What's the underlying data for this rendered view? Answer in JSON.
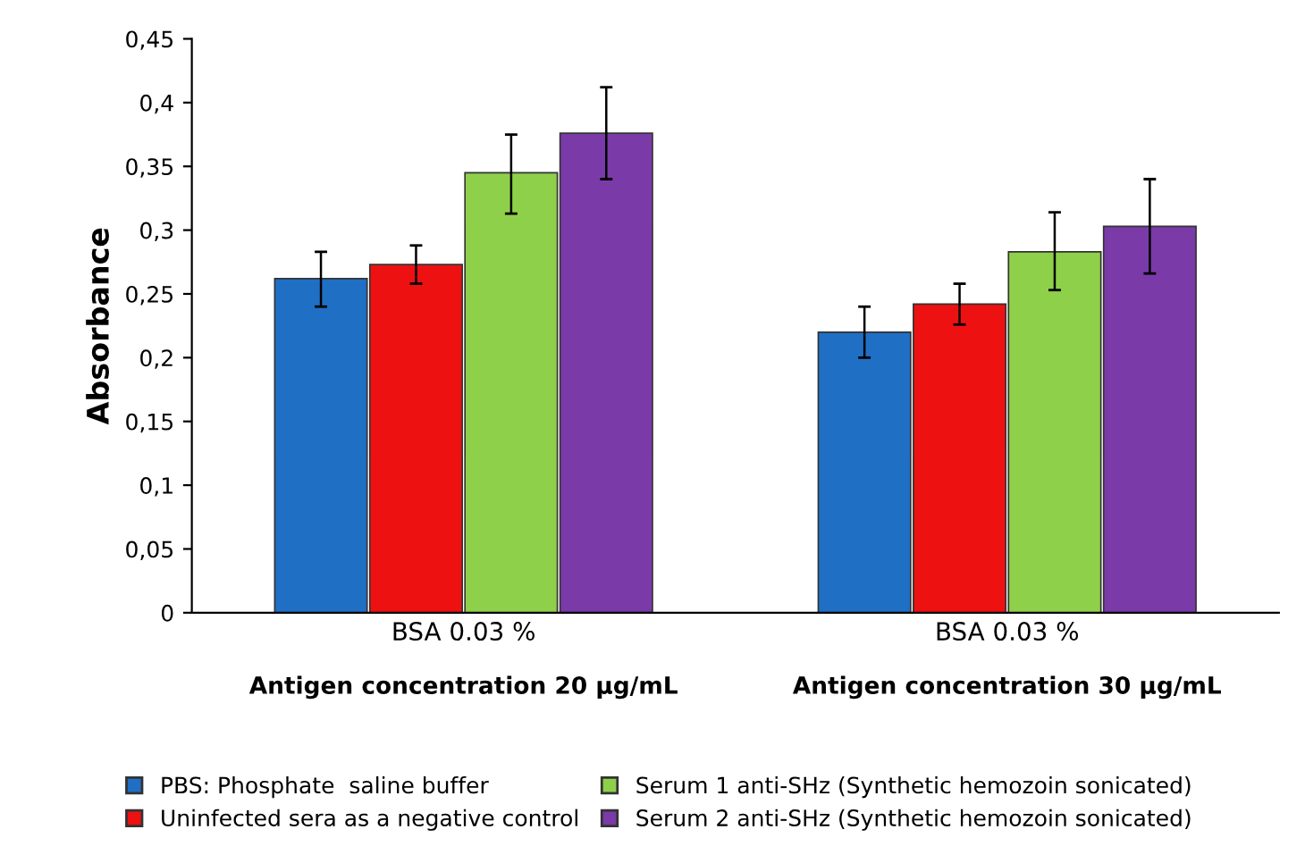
{
  "chart_data": {
    "type": "bar",
    "ylabel": "Absorbance",
    "categories": [
      "BSA 0.03 %",
      "BSA 0.03 %"
    ],
    "series": [
      {
        "name": "PBS: Phosphate  saline buffer",
        "color": "#1f6fc5",
        "values": [
          0.262,
          0.22
        ],
        "errors": [
          [
            0.24,
            0.283
          ],
          [
            0.2,
            0.24
          ]
        ]
      },
      {
        "name": "Uninfected sera as a negative control",
        "color": "#ee1111",
        "values": [
          0.273,
          0.242
        ],
        "errors": [
          [
            0.258,
            0.288
          ],
          [
            0.226,
            0.258
          ]
        ]
      },
      {
        "name": "Serum 1 anti-SHz (Synthetic hemozoin sonicated)",
        "color": "#8ed04a",
        "values": [
          0.345,
          0.283
        ],
        "errors": [
          [
            0.313,
            0.375
          ],
          [
            0.253,
            0.314
          ]
        ]
      },
      {
        "name": "Serum 2 anti-SHz (Synthetic hemozoin sonicated)",
        "color": "#7a3aa8",
        "values": [
          0.376,
          0.303
        ],
        "errors": [
          [
            0.34,
            0.412
          ],
          [
            0.266,
            0.34
          ]
        ]
      }
    ],
    "annotations": [
      "Antigen concentration 20 µg/mL",
      "Antigen concentration 30 µg/mL"
    ],
    "ylim": [
      0,
      0.45
    ],
    "yticks": [
      0,
      {
        "value": 0.05,
        "label": "0,05"
      },
      {
        "value": 0.1,
        "label": "0,1"
      },
      {
        "value": 0.15,
        "label": "0,15"
      },
      {
        "value": 0.2,
        "label": "0,2"
      },
      {
        "value": 0.25,
        "label": "0,25"
      },
      {
        "value": 0.3,
        "label": "0,3"
      },
      {
        "value": 0.35,
        "label": "0,35"
      },
      {
        "value": 0.4,
        "label": "0,4"
      },
      {
        "value": 0.45,
        "label": "0,45"
      }
    ],
    "grid": false,
    "legend": "bottom"
  }
}
